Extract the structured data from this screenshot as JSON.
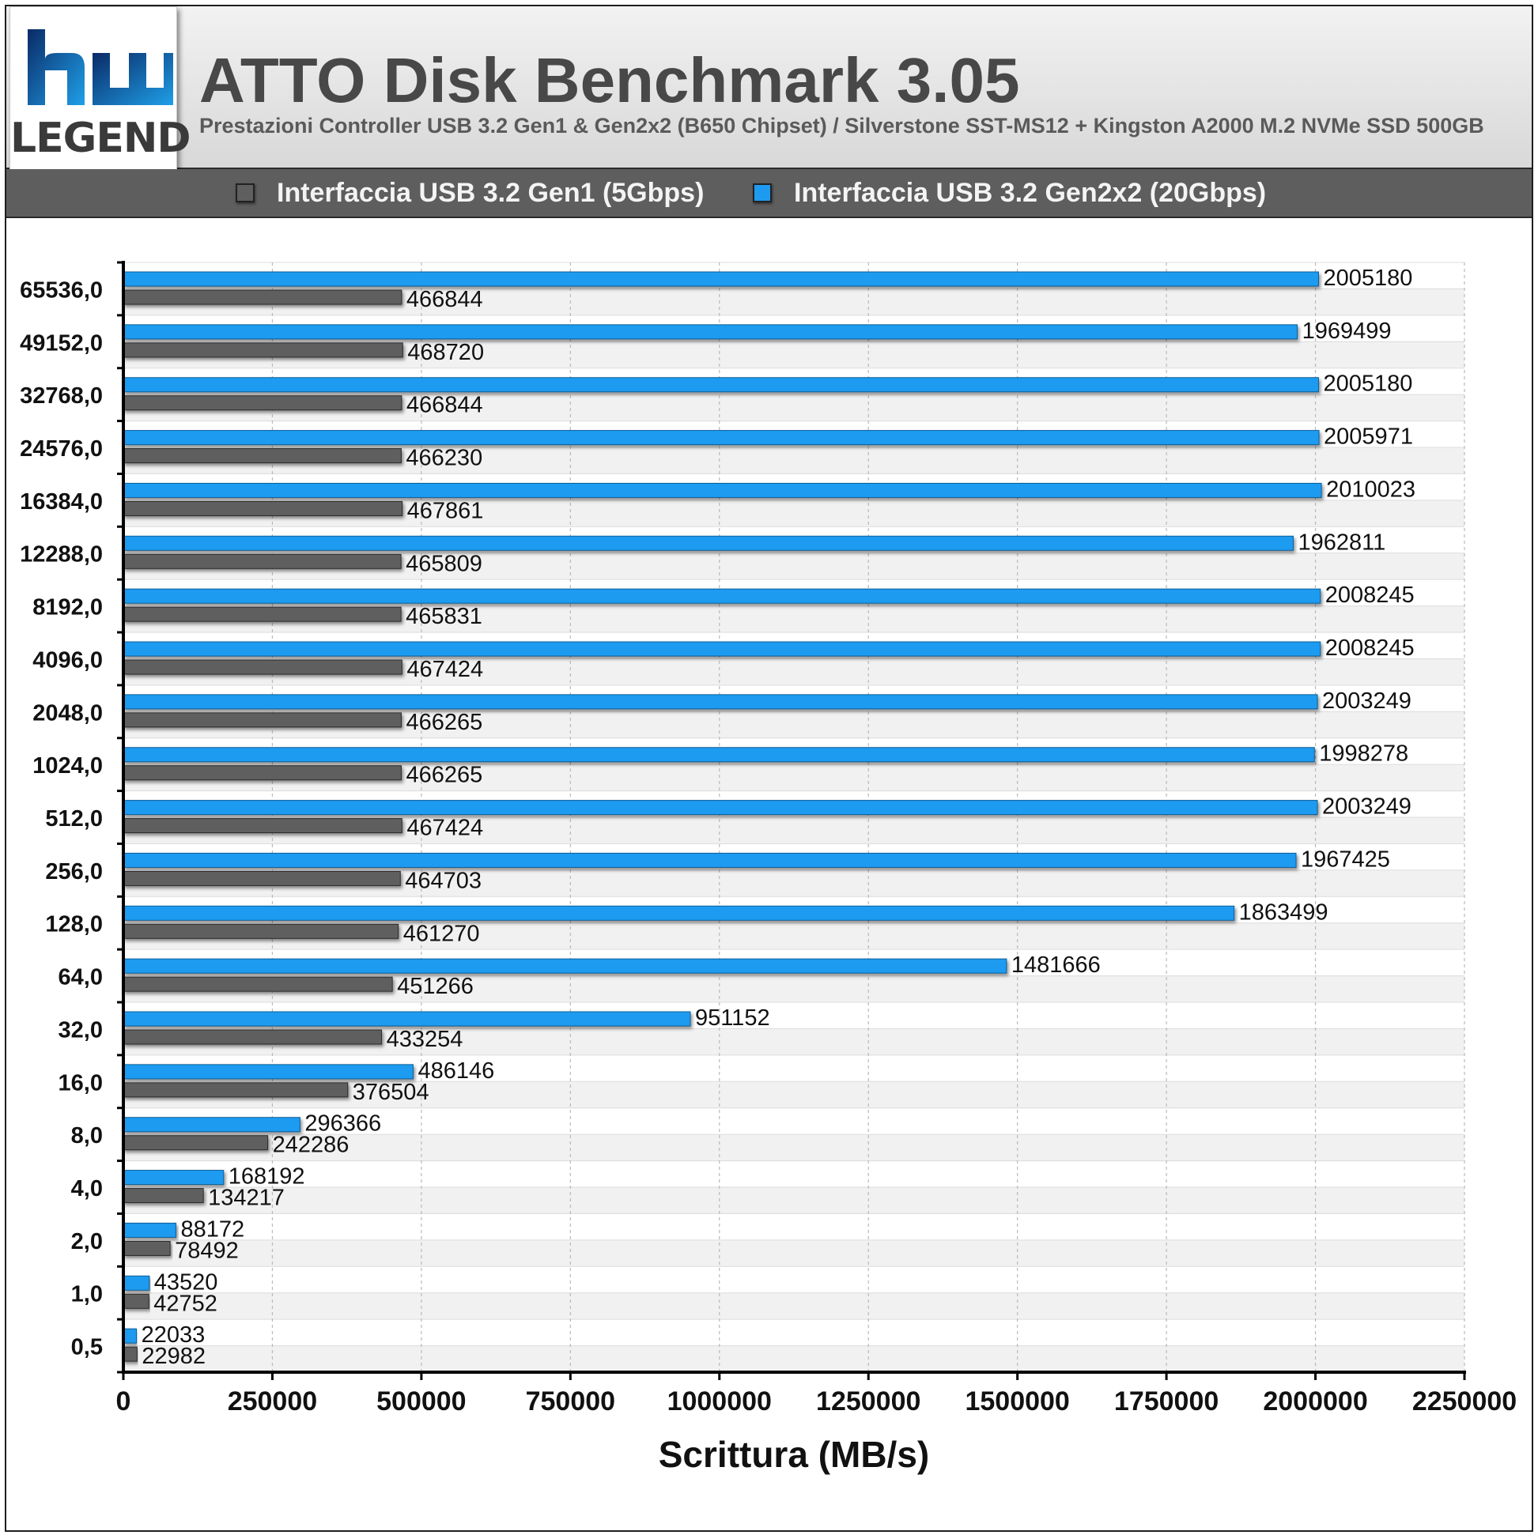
{
  "header": {
    "title": "ATTO Disk Benchmark 3.05",
    "subtitle": "Prestazioni Controller USB 3.2 Gen1 & Gen2x2 (B650 Chipset) / Silverstone SST-MS12 + Kingston A2000 M.2 NVMe SSD 500GB",
    "logo_text": "LEGEND"
  },
  "legend": {
    "items": [
      {
        "label": "Interfaccia USB 3.2 Gen1 (5Gbps)",
        "color": "#5f5f5f"
      },
      {
        "label": "Interfaccia USB 3.2 Gen2x2 (20Gbps)",
        "color": "#1e9bf0"
      }
    ]
  },
  "chart_data": {
    "type": "bar",
    "orientation": "horizontal",
    "categories": [
      "65536,0",
      "49152,0",
      "32768,0",
      "24576,0",
      "16384,0",
      "12288,0",
      "8192,0",
      "4096,0",
      "2048,0",
      "1024,0",
      "512,0",
      "256,0",
      "128,0",
      "64,0",
      "32,0",
      "16,0",
      "8,0",
      "4,0",
      "2,0",
      "1,0",
      "0,5"
    ],
    "series": [
      {
        "name": "Interfaccia USB 3.2 Gen2x2 (20Gbps)",
        "color": "#1e9bf0",
        "values": [
          2005180,
          1969499,
          2005180,
          2005971,
          2010023,
          1962811,
          2008245,
          2008245,
          2003249,
          1998278,
          2003249,
          1967425,
          1863499,
          1481666,
          951152,
          486146,
          296366,
          168192,
          88172,
          43520,
          22033
        ]
      },
      {
        "name": "Interfaccia USB 3.2 Gen1 (5Gbps)",
        "color": "#5f5f5f",
        "values": [
          466844,
          468720,
          466844,
          466230,
          467861,
          465809,
          465831,
          467424,
          466265,
          466265,
          467424,
          464703,
          461270,
          451266,
          433254,
          376504,
          242286,
          134217,
          78492,
          42752,
          22982
        ]
      }
    ],
    "xlabel": "Scrittura (MB/s)",
    "xlim": [
      0,
      2250000
    ],
    "xticks": [
      "0",
      "250000",
      "500000",
      "750000",
      "1000000",
      "1250000",
      "1500000",
      "1750000",
      "2000000",
      "2250000"
    ],
    "grid": true
  }
}
